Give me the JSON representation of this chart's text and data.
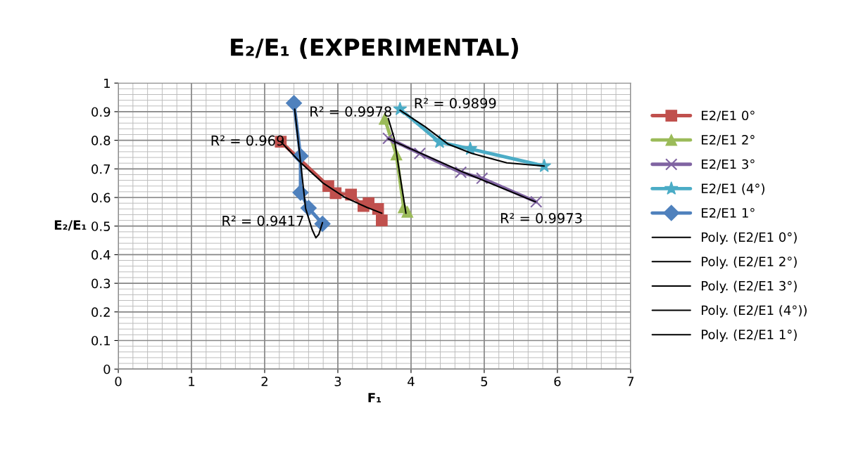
{
  "chart_data": {
    "type": "line",
    "title": "E₂/E₁ (EXPERIMENTAL)",
    "xlabel": "F₁",
    "ylabel": "E₂/E₁",
    "xlim": [
      0,
      7
    ],
    "xticks": [
      0,
      1,
      2,
      3,
      4,
      5,
      6,
      7
    ],
    "ylim": [
      0,
      1
    ],
    "yticks": [
      0,
      0.1,
      0.2,
      0.3,
      0.4,
      0.5,
      0.6,
      0.7,
      0.8,
      0.9,
      1
    ],
    "grid": true,
    "legend": "right",
    "series": [
      {
        "name": "E2/E1 0°",
        "color": "#c0504d",
        "marker": "square",
        "x": [
          2.22,
          2.87,
          2.97,
          3.18,
          3.35,
          3.42,
          3.55,
          3.6
        ],
        "values": [
          0.795,
          0.64,
          0.615,
          0.61,
          0.57,
          0.58,
          0.56,
          0.52
        ]
      },
      {
        "name": "E2/E1 2°",
        "color": "#9bbb59",
        "marker": "triangle",
        "x": [
          3.64,
          3.8,
          3.9,
          3.95
        ],
        "values": [
          0.875,
          0.75,
          0.565,
          0.55
        ]
      },
      {
        "name": "E2/E1 3°",
        "color": "#8064a2",
        "marker": "cross",
        "x": [
          3.69,
          4.12,
          4.68,
          4.97,
          5.71
        ],
        "values": [
          0.807,
          0.754,
          0.688,
          0.667,
          0.585
        ]
      },
      {
        "name": "E2/E1 (4°)",
        "color": "#4bacc6",
        "marker": "star",
        "x": [
          3.85,
          4.39,
          4.81,
          5.82
        ],
        "values": [
          0.909,
          0.794,
          0.77,
          0.71
        ]
      },
      {
        "name": "E2/E1 1°",
        "color": "#4f81bd",
        "marker": "diamond",
        "x": [
          2.4,
          2.49,
          2.49,
          2.6,
          2.79
        ],
        "values": [
          0.93,
          0.745,
          0.617,
          0.563,
          0.508
        ]
      },
      {
        "name": "Poly. (E2/E1 0°)",
        "color": "#000000",
        "marker": "none",
        "x": [
          2.22,
          2.5,
          2.8,
          3.1,
          3.4,
          3.6
        ],
        "values": [
          0.795,
          0.72,
          0.65,
          0.6,
          0.565,
          0.545
        ]
      },
      {
        "name": "Poly. (E2/E1 2°)",
        "color": "#000000",
        "marker": "none",
        "x": [
          3.69,
          3.77,
          3.83,
          3.93
        ],
        "values": [
          0.876,
          0.807,
          0.708,
          0.545
        ]
      },
      {
        "name": "Poly. (E2/E1 3°)",
        "color": "#000000",
        "marker": "none",
        "x": [
          3.69,
          4.7,
          5.7
        ],
        "values": [
          0.805,
          0.69,
          0.585
        ]
      },
      {
        "name": "Poly. (E2/E1 (4°))",
        "color": "#000000",
        "marker": "none",
        "x": [
          3.85,
          4.19,
          4.51,
          4.83,
          5.31,
          5.82
        ],
        "values": [
          0.905,
          0.848,
          0.786,
          0.754,
          0.721,
          0.71
        ]
      },
      {
        "name": "Poly. (E2/E1 1°)",
        "color": "#000000",
        "marker": "none",
        "x": [
          2.41,
          2.49,
          2.56,
          2.65,
          2.7,
          2.74,
          2.79
        ],
        "values": [
          0.909,
          0.725,
          0.561,
          0.487,
          0.459,
          0.471,
          0.512
        ]
      }
    ],
    "annotations": [
      {
        "text": "R² = 0.969",
        "x": 2.22,
        "y": 0.795
      },
      {
        "text": "R² = 0.9978",
        "x": 3.69,
        "y": 0.876
      },
      {
        "text": "R² = 0.9899",
        "x": 3.85,
        "y": 0.905
      },
      {
        "text": "R² = 0.9973",
        "x": 5.7,
        "y": 0.585
      },
      {
        "text": "R² = 0.9417",
        "x": 2.65,
        "y": 0.487
      }
    ]
  }
}
